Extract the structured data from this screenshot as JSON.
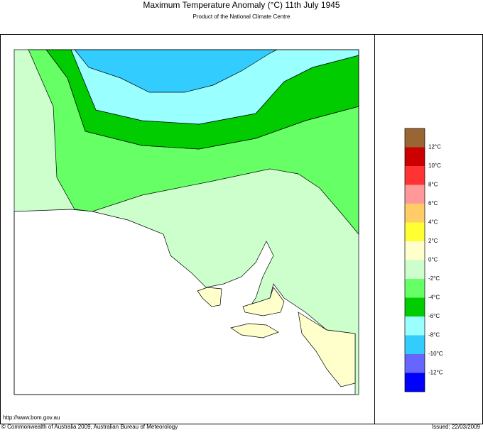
{
  "header": {
    "title": "Maximum Temperature Anomaly (°C)  11th July 1945",
    "subtitle": "Product of the National Climate Centre"
  },
  "legend": {
    "colors": [
      "#996633",
      "#cc0000",
      "#ff3333",
      "#ff9999",
      "#ffcc66",
      "#ffff33",
      "#ffffcc",
      "#ccffcc",
      "#66ff66",
      "#00cc00",
      "#99ffff",
      "#33ccff",
      "#6666ff",
      "#0000ff"
    ],
    "labels": [
      "12°C",
      "10°C",
      "8°C",
      "6°C",
      "4°C",
      "2°C",
      "0°C",
      "-2°C",
      "-4°C",
      "-6°C",
      "-8°C",
      "-10°C",
      "-12°C"
    ]
  },
  "footer": {
    "url": "http://www.bom.gov.au",
    "copyright": "© Commonwealth of Australia 2009, Australian Bureau of Meteorology",
    "issued": "Issued: 22/03/2009"
  }
}
